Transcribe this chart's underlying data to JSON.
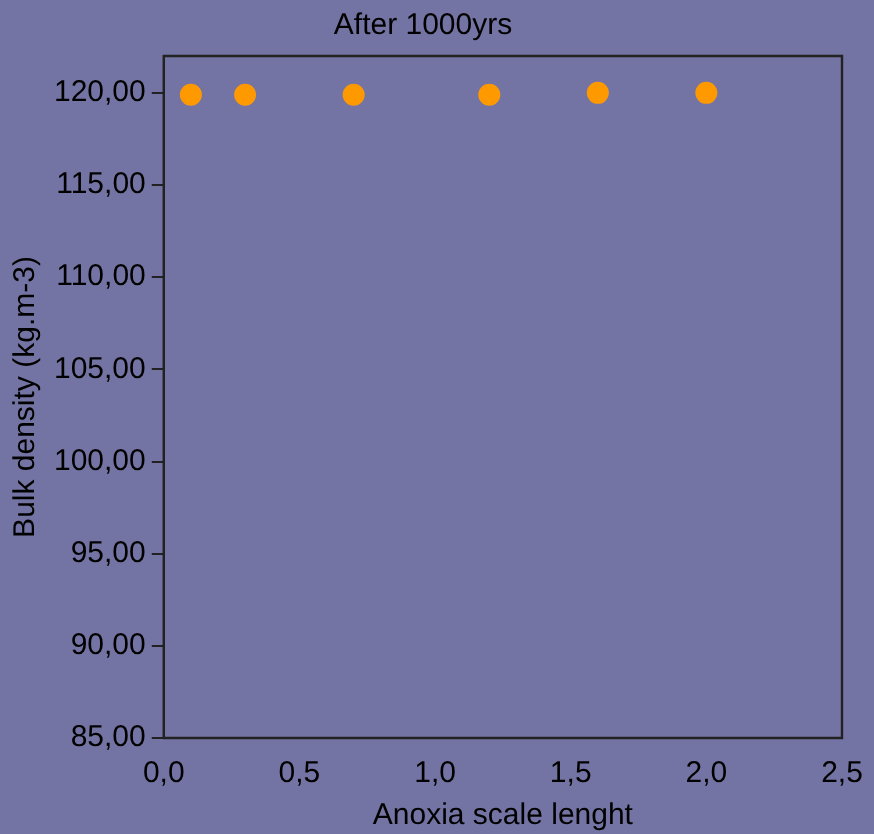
{
  "chart_data": {
    "type": "scatter",
    "title": "After 1000yrs",
    "xlabel": "Anoxia scale lenght",
    "ylabel": "Bulk density (kg.m-3)",
    "x": [
      0.1,
      0.3,
      0.7,
      1.2,
      1.6,
      2.0
    ],
    "series": [
      {
        "color": "#ff9900",
        "values": [
          119.9,
          119.9,
          119.9,
          119.9,
          120.0,
          120.0
        ]
      }
    ],
    "xlim": [
      0,
      2.5
    ],
    "xticks": [
      {
        "value": 0,
        "label": "0,0"
      },
      {
        "value": 0.5,
        "label": "0,5"
      },
      {
        "value": 1,
        "label": "1,0"
      },
      {
        "value": 1.5,
        "label": "1,5"
      },
      {
        "value": 2,
        "label": "2,0"
      },
      {
        "value": 2.5,
        "label": "2,5"
      }
    ],
    "ylim": [
      85,
      122
    ],
    "yticks": [
      {
        "value": 85,
        "label": "85,00"
      },
      {
        "value": 90,
        "label": "90,00"
      },
      {
        "value": 95,
        "label": "95,00"
      },
      {
        "value": 100,
        "label": "100,00"
      },
      {
        "value": 105,
        "label": "105,00"
      },
      {
        "value": 110,
        "label": "110,00"
      },
      {
        "value": 115,
        "label": "115,00"
      },
      {
        "value": 120,
        "label": "120,00"
      }
    ],
    "grid": false,
    "legend": false,
    "marker": "circle"
  }
}
